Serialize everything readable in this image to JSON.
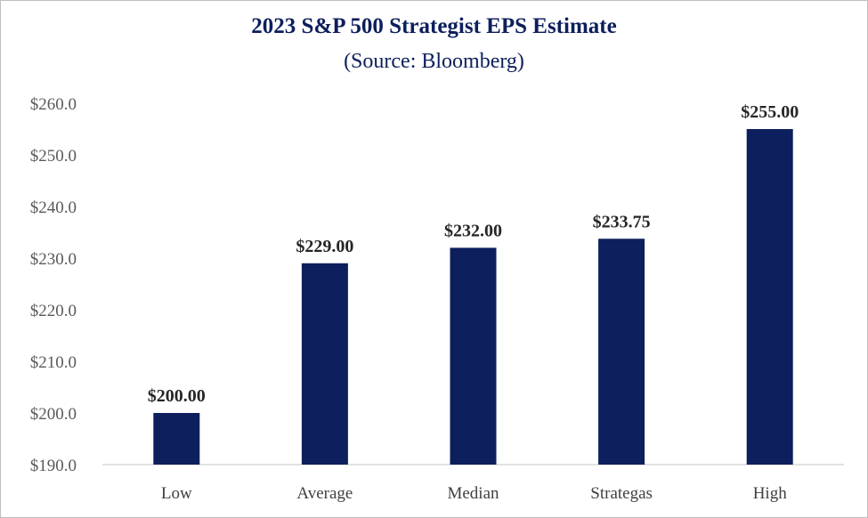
{
  "chart_data": {
    "type": "bar",
    "title": "2023 S&P 500 Strategist EPS Estimate",
    "subtitle": "(Source: Bloomberg)",
    "categories": [
      "Low",
      "Average",
      "Median",
      "Strategas",
      "High"
    ],
    "values": [
      200.0,
      229.0,
      232.0,
      233.75,
      255.0
    ],
    "data_labels": [
      "$200.00",
      "$229.00",
      "$232.00",
      "$233.75",
      "$255.00"
    ],
    "y_ticks": [
      "$190.0",
      "$200.0",
      "$210.0",
      "$220.0",
      "$230.0",
      "$240.0",
      "$250.0",
      "$260.0"
    ],
    "ylim": [
      190,
      260
    ],
    "xlabel": "",
    "ylabel": "",
    "grid": false,
    "bar_color": "#0d1f5c"
  }
}
